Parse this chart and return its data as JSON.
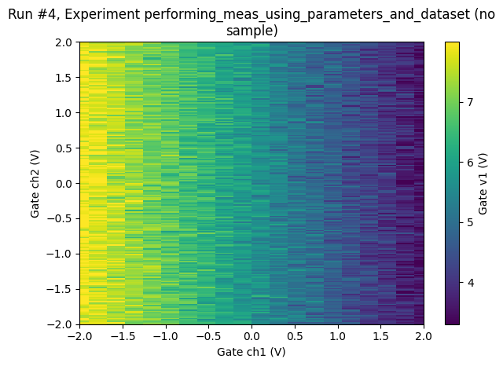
{
  "title": "Run #4, Experiment performing_meas_using_parameters_and_dataset (no\nsample)",
  "xlabel": "Gate ch1 (V)",
  "ylabel": "Gate ch2 (V)",
  "clabel": "Gate v1 (V)",
  "xmin": -2.0,
  "xmax": 2.0,
  "ymin": -2.0,
  "ymax": 2.0,
  "nx_coarse": 20,
  "ny_fine": 200,
  "cmap": "viridis",
  "vmin": 3.3,
  "vmax": 8.0,
  "figsize": [
    6.4,
    4.76
  ],
  "dpi": 100,
  "colorbar_ticks": [
    4,
    5,
    6,
    7
  ],
  "seed": 12345,
  "base_slope": -1.1,
  "base_intercept": 5.75,
  "noise_scale_row": 0.25,
  "noise_scale_pixel": 0.08
}
